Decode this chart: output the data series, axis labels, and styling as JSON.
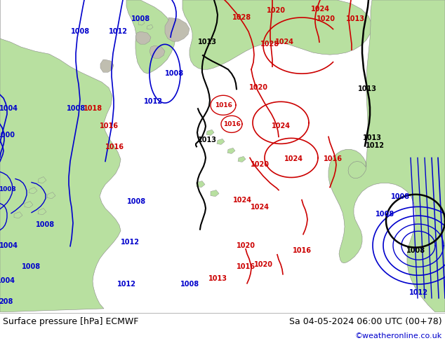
{
  "title_left": "Surface pressure [hPa] ECMWF",
  "title_right": "Sa 04-05-2024 06:00 UTC (00+78)",
  "copyright": "©weatheronline.co.uk",
  "ocean_color": "#c8d8e8",
  "land_color": "#b8e0a0",
  "gray_land_color": "#c0beb0",
  "fig_width": 6.34,
  "fig_height": 4.9,
  "dpi": 100,
  "bottom_bar_color": "#f0f0f0",
  "title_fontsize": 9,
  "copyright_color": "#0000cc",
  "contour_black": "#000000",
  "contour_blue": "#0000cc",
  "contour_red": "#cc0000"
}
